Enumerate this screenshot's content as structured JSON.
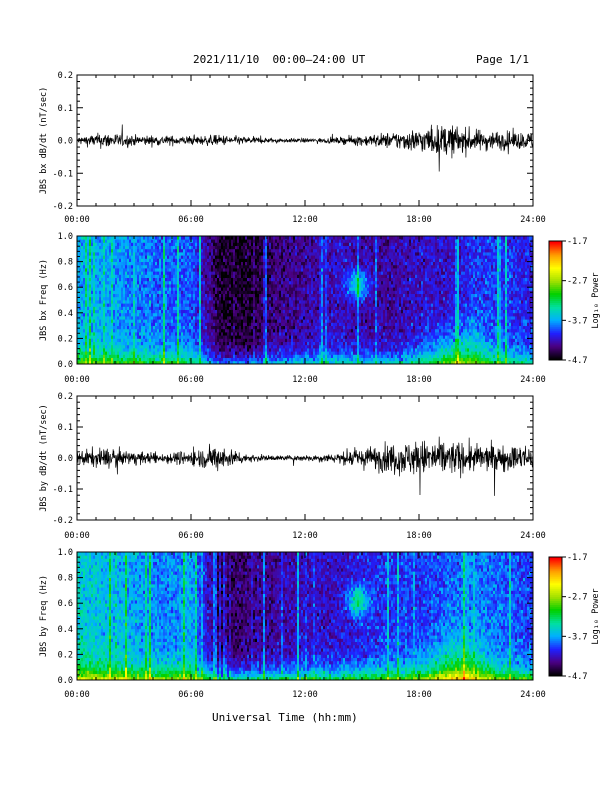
{
  "header": {
    "title": "2021/11/10  00:00–24:00 UT",
    "page": "Page 1/1"
  },
  "footer": {
    "xlabel": "Universal Time (hh:mm)"
  },
  "x_tick_labels": [
    "00:00",
    "06:00",
    "12:00",
    "18:00",
    "24:00"
  ],
  "colorbar": {
    "label": "Log₁₀ Power",
    "ticks": [
      "-1.7",
      "-2.7",
      "-3.7",
      "-4.7"
    ],
    "range": [
      -4.7,
      -1.7
    ],
    "colors": [
      "#000000",
      "#4b0082",
      "#2020ff",
      "#00b0ff",
      "#00e0a0",
      "#00d000",
      "#a0e000",
      "#ffff00",
      "#ffa000",
      "#ff0000"
    ]
  },
  "chart_data": [
    {
      "type": "line",
      "ylabel": "JBS bx dB/dt (nT/sec)",
      "xlim": [
        0,
        24
      ],
      "ylim": [
        -0.2,
        0.2
      ],
      "y_ticks": [
        -0.2,
        -0.1,
        0.0,
        0.1,
        0.2
      ],
      "y_tick_labels": [
        "-0.2",
        "-0.1",
        "0.0",
        "0.1",
        "0.2"
      ],
      "series": [
        {
          "x": [
            0,
            1.5,
            3,
            4.5,
            6,
            7.5,
            9,
            10.5,
            12,
            13.5,
            15,
            16.5,
            18,
            19.5,
            21,
            22.5,
            24
          ],
          "amplitude": [
            0.015,
            0.03,
            0.02,
            0.018,
            0.016,
            0.02,
            0.014,
            0.008,
            0.008,
            0.01,
            0.02,
            0.03,
            0.045,
            0.06,
            0.04,
            0.035,
            0.03
          ]
        }
      ]
    },
    {
      "type": "heatmap",
      "ylabel": "JBS bx Freq (Hz)",
      "xlim": [
        0,
        24
      ],
      "ylim": [
        0,
        1.0
      ],
      "y_ticks": [
        0.0,
        0.2,
        0.4,
        0.6,
        0.8,
        1.0
      ],
      "y_tick_labels": [
        "0.0",
        "0.2",
        "0.4",
        "0.6",
        "0.8",
        "1.0"
      ],
      "background_level": [
        -3.7,
        -3.7,
        -3.8,
        -3.9,
        -3.9,
        -4.6,
        -4.6,
        -4.4,
        -4.3,
        -4.2,
        -4.3,
        -4.3,
        -4.2,
        -4.2,
        -4.0,
        -4.0,
        -4.1
      ],
      "low_freq_boost": 0.9
    },
    {
      "type": "line",
      "ylabel": "JBS by dB/dt (nT/sec)",
      "xlim": [
        0,
        24
      ],
      "ylim": [
        -0.2,
        0.2
      ],
      "y_ticks": [
        -0.2,
        -0.1,
        0.0,
        0.1,
        0.2
      ],
      "y_tick_labels": [
        "-0.2",
        "-0.1",
        "0.0",
        "0.1",
        "0.2"
      ],
      "series": [
        {
          "x": [
            0,
            1.5,
            3,
            4.5,
            6,
            7.5,
            9,
            10.5,
            12,
            13.5,
            15,
            16.5,
            18,
            19.5,
            21,
            22.5,
            24
          ],
          "amplitude": [
            0.03,
            0.04,
            0.025,
            0.02,
            0.03,
            0.05,
            0.015,
            0.01,
            0.012,
            0.018,
            0.04,
            0.06,
            0.07,
            0.07,
            0.055,
            0.05,
            0.05
          ]
        }
      ]
    },
    {
      "type": "heatmap",
      "ylabel": "JBS by Freq (Hz)",
      "xlim": [
        0,
        24
      ],
      "ylim": [
        0,
        1.0
      ],
      "y_ticks": [
        0.0,
        0.2,
        0.4,
        0.6,
        0.8,
        1.0
      ],
      "y_tick_labels": [
        "0.0",
        "0.2",
        "0.4",
        "0.6",
        "0.8",
        "1.0"
      ],
      "background_level": [
        -3.5,
        -3.6,
        -3.7,
        -3.8,
        -3.7,
        -4.5,
        -4.4,
        -4.3,
        -4.2,
        -4.2,
        -4.1,
        -4.0,
        -4.0,
        -3.9,
        -3.8,
        -3.9,
        -4.0
      ],
      "low_freq_boost": 1.2
    }
  ]
}
